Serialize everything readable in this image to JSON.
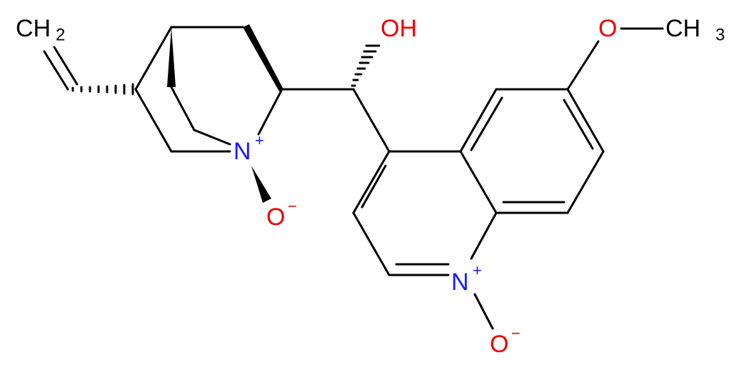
{
  "atoms": [
    {
      "label": "CH",
      "sub": "2"
    },
    {
      "label": "OH"
    },
    {
      "label": "O"
    },
    {
      "label": "CH",
      "sub": "3"
    },
    {
      "label": "N",
      "charge": "+"
    },
    {
      "label": "O",
      "charge": "−"
    },
    {
      "label": "N",
      "charge": "+"
    },
    {
      "label": "O",
      "charge": "−"
    }
  ]
}
